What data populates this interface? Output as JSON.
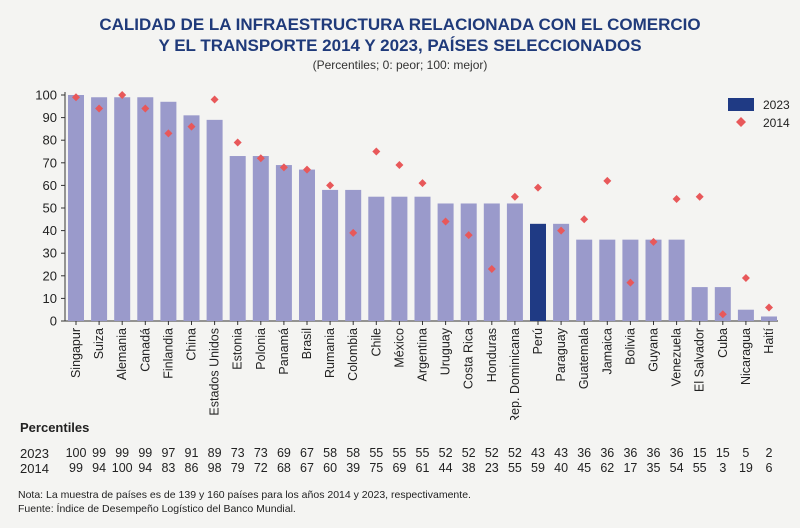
{
  "title_line1": "CALIDAD DE LA INFRAESTRUCTURA RELACIONADA CON EL COMERCIO",
  "title_line2": "Y EL TRANSPORTE 2014 Y 2023, PAÍSES SELECCIONADOS",
  "subtitle": "(Percentiles; 0: peor; 100: mejor)",
  "table": {
    "heading": "Percentiles",
    "row1_label": "2023",
    "row2_label": "2014"
  },
  "note": "Nota: La muestra de países es de 139 y 160 países para los años 2014 y 2023, respectivamente.",
  "source": "Fuente: Índice de Desempeño Logístico del Banco Mundial.",
  "colors": {
    "bar": "#9a9acb",
    "highlight_bar": "#1f3a84",
    "marker": "#e8585a",
    "title": "#1f3a7a"
  },
  "chart_data": {
    "type": "bar",
    "categories": [
      "Singapur",
      "Suiza",
      "Alemania",
      "Canadá",
      "Finlandia",
      "China",
      "Estados Unidos",
      "Estonia",
      "Polonia",
      "Panamá",
      "Brasil",
      "Rumania",
      "Colombia",
      "Chile",
      "México",
      "Argentina",
      "Uruguay",
      "Costa Rica",
      "Honduras",
      "Rep. Dominicana",
      "Perú",
      "Paraguay",
      "Guatemala",
      "Jamaica",
      "Bolivia",
      "Guyana",
      "Venezuela",
      "El Salvador",
      "Cuba",
      "Nicaragua",
      "Haití"
    ],
    "series": [
      {
        "name": "2023",
        "kind": "bar",
        "values": [
          100,
          99,
          99,
          99,
          97,
          91,
          89,
          73,
          73,
          69,
          67,
          58,
          58,
          55,
          55,
          55,
          52,
          52,
          52,
          52,
          43,
          43,
          36,
          36,
          36,
          36,
          36,
          15,
          15,
          5,
          2
        ]
      },
      {
        "name": "2014",
        "kind": "marker",
        "values": [
          99,
          94,
          100,
          94,
          83,
          86,
          98,
          79,
          72,
          68,
          67,
          60,
          39,
          75,
          69,
          61,
          44,
          38,
          23,
          55,
          59,
          40,
          45,
          62,
          17,
          35,
          54,
          55,
          3,
          19,
          6
        ]
      }
    ],
    "highlight_category": "Perú",
    "yticks": [
      "0",
      "10",
      "20",
      "30",
      "40",
      "50",
      "60",
      "70",
      "80",
      "90",
      "100"
    ],
    "ylim": [
      0,
      100
    ],
    "grid": false,
    "legend_position": "top-right"
  }
}
